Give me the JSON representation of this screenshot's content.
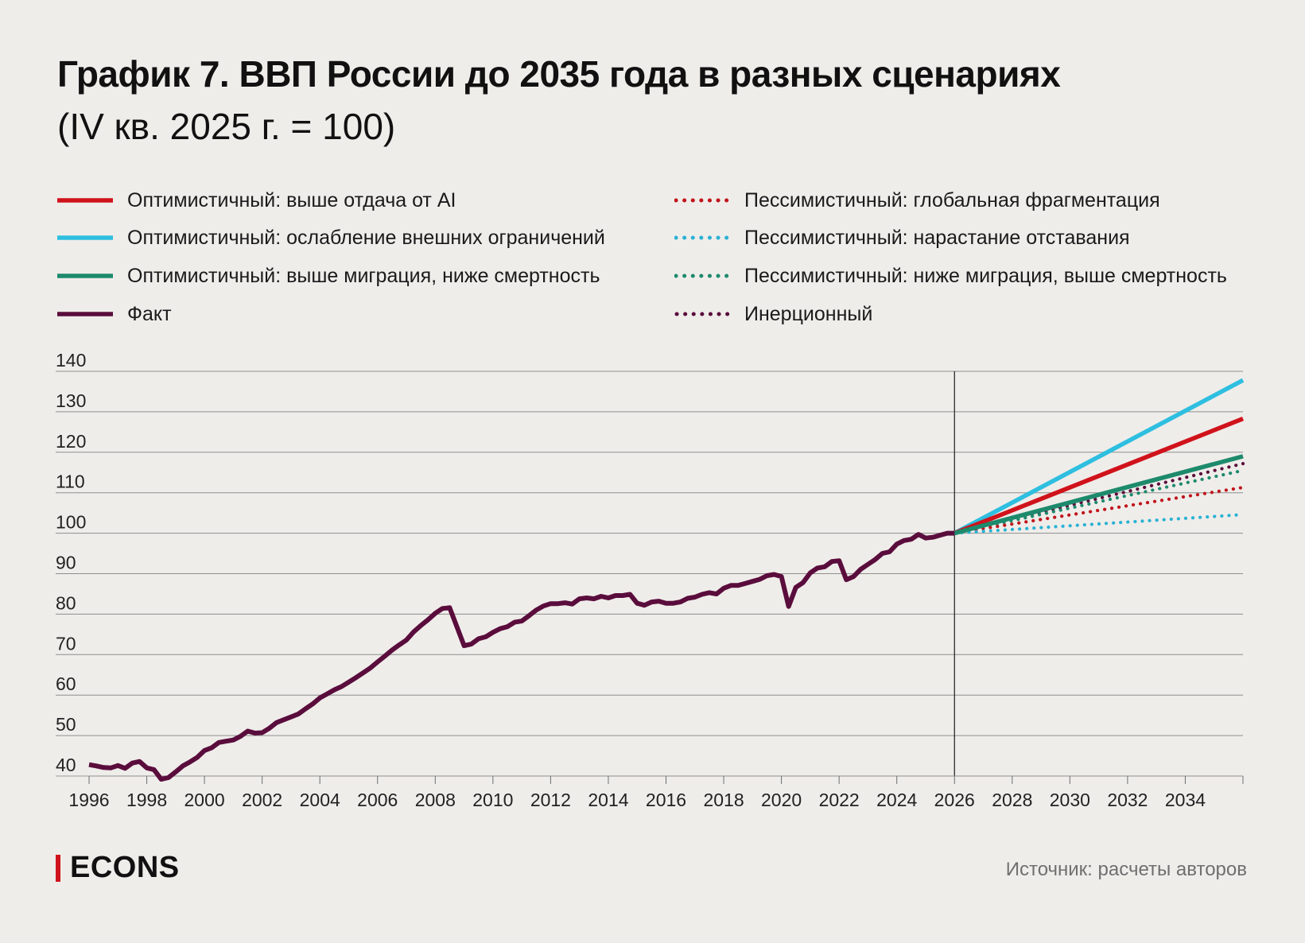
{
  "header": {
    "title": "График 7. ВВП России до 2035 года в разных сценариях",
    "subtitle": "(IV кв. 2025 г. = 100)"
  },
  "legend": [
    {
      "label": "Оптимистичный: выше отдача от AI",
      "color": "#d0121b",
      "style": "solid"
    },
    {
      "label": "Оптимистичный: ослабление внешних ограничений",
      "color": "#2ebfe0",
      "style": "solid"
    },
    {
      "label": "Оптимистичный: выше миграция, ниже смертность",
      "color": "#1d8a6c",
      "style": "solid"
    },
    {
      "label": "Факт",
      "color": "#5a0d3c",
      "style": "solid"
    },
    {
      "label": "Пессимистичный: глобальная фрагментация",
      "color": "#c0141c",
      "style": "dotted"
    },
    {
      "label": "Пессимистичный: нарастание отставания",
      "color": "#2ab2d4",
      "style": "dotted"
    },
    {
      "label": "Пессимистичный: ниже миграция, выше смертность",
      "color": "#1d8a6c",
      "style": "dotted"
    },
    {
      "label": "Инерционный",
      "color": "#5a0d3c",
      "style": "dotted"
    }
  ],
  "footer": {
    "brand": "ECONS",
    "source": "Источник: расчеты авторов"
  },
  "chart_data": {
    "type": "line",
    "title": "График 7. ВВП России до 2035 года в разных сценариях",
    "subtitle": "(IV кв. 2025 г. = 100)",
    "xlabel": "",
    "ylabel": "",
    "xlim": [
      1996,
      2036
    ],
    "ylim": [
      40,
      140
    ],
    "x_ticks": [
      1996,
      1998,
      2000,
      2002,
      2004,
      2006,
      2008,
      2010,
      2012,
      2014,
      2016,
      2018,
      2020,
      2022,
      2024,
      2026,
      2028,
      2030,
      2032,
      2034
    ],
    "y_ticks": [
      40,
      50,
      60,
      70,
      80,
      90,
      100,
      110,
      120,
      130,
      140
    ],
    "grid": "horizontal",
    "reference_line_x": 2026,
    "legend_position": "top",
    "series": [
      {
        "name": "Факт",
        "color": "#5a0d3c",
        "style": "solid",
        "points": [
          [
            1996.0,
            42.8
          ],
          [
            1996.25,
            42.5
          ],
          [
            1996.5,
            42.1
          ],
          [
            1996.75,
            42.0
          ],
          [
            1997.0,
            42.6
          ],
          [
            1997.25,
            41.9
          ],
          [
            1997.5,
            43.2
          ],
          [
            1997.75,
            43.6
          ],
          [
            1998.0,
            42.0
          ],
          [
            1998.25,
            41.6
          ],
          [
            1998.5,
            39.2
          ],
          [
            1998.75,
            39.6
          ],
          [
            1999.0,
            41.0
          ],
          [
            1999.25,
            42.5
          ],
          [
            1999.5,
            43.5
          ],
          [
            1999.75,
            44.6
          ],
          [
            2000.0,
            46.3
          ],
          [
            2000.25,
            47.0
          ],
          [
            2000.5,
            48.3
          ],
          [
            2000.75,
            48.6
          ],
          [
            2001.0,
            48.9
          ],
          [
            2001.25,
            49.8
          ],
          [
            2001.5,
            51.1
          ],
          [
            2001.75,
            50.6
          ],
          [
            2002.0,
            50.7
          ],
          [
            2002.25,
            51.8
          ],
          [
            2002.5,
            53.2
          ],
          [
            2002.75,
            53.9
          ],
          [
            2003.0,
            54.6
          ],
          [
            2003.25,
            55.3
          ],
          [
            2003.5,
            56.6
          ],
          [
            2003.75,
            57.8
          ],
          [
            2004.0,
            59.3
          ],
          [
            2004.25,
            60.3
          ],
          [
            2004.5,
            61.3
          ],
          [
            2004.75,
            62.1
          ],
          [
            2005.0,
            63.2
          ],
          [
            2005.25,
            64.3
          ],
          [
            2005.5,
            65.5
          ],
          [
            2005.75,
            66.7
          ],
          [
            2006.0,
            68.2
          ],
          [
            2006.25,
            69.6
          ],
          [
            2006.5,
            71.1
          ],
          [
            2006.75,
            72.4
          ],
          [
            2007.0,
            73.6
          ],
          [
            2007.25,
            75.6
          ],
          [
            2007.5,
            77.2
          ],
          [
            2007.75,
            78.6
          ],
          [
            2008.0,
            80.2
          ],
          [
            2008.25,
            81.4
          ],
          [
            2008.5,
            81.6
          ],
          [
            2008.75,
            76.9
          ],
          [
            2009.0,
            72.2
          ],
          [
            2009.25,
            72.6
          ],
          [
            2009.5,
            73.9
          ],
          [
            2009.75,
            74.4
          ],
          [
            2010.0,
            75.5
          ],
          [
            2010.25,
            76.4
          ],
          [
            2010.5,
            76.9
          ],
          [
            2010.75,
            78.0
          ],
          [
            2011.0,
            78.3
          ],
          [
            2011.25,
            79.6
          ],
          [
            2011.5,
            81.0
          ],
          [
            2011.75,
            82.0
          ],
          [
            2012.0,
            82.6
          ],
          [
            2012.25,
            82.6
          ],
          [
            2012.5,
            82.8
          ],
          [
            2012.75,
            82.5
          ],
          [
            2013.0,
            83.8
          ],
          [
            2013.25,
            84.0
          ],
          [
            2013.5,
            83.8
          ],
          [
            2013.75,
            84.4
          ],
          [
            2014.0,
            84.0
          ],
          [
            2014.25,
            84.6
          ],
          [
            2014.5,
            84.6
          ],
          [
            2014.75,
            84.9
          ],
          [
            2015.0,
            82.7
          ],
          [
            2015.25,
            82.2
          ],
          [
            2015.5,
            83.0
          ],
          [
            2015.75,
            83.2
          ],
          [
            2016.0,
            82.7
          ],
          [
            2016.25,
            82.7
          ],
          [
            2016.5,
            83.0
          ],
          [
            2016.75,
            83.9
          ],
          [
            2017.0,
            84.2
          ],
          [
            2017.25,
            84.9
          ],
          [
            2017.5,
            85.3
          ],
          [
            2017.75,
            85.0
          ],
          [
            2018.0,
            86.4
          ],
          [
            2018.25,
            87.1
          ],
          [
            2018.5,
            87.1
          ],
          [
            2018.75,
            87.6
          ],
          [
            2019.0,
            88.1
          ],
          [
            2019.25,
            88.6
          ],
          [
            2019.5,
            89.5
          ],
          [
            2019.75,
            89.8
          ],
          [
            2020.0,
            89.3
          ],
          [
            2020.25,
            81.9
          ],
          [
            2020.5,
            86.6
          ],
          [
            2020.75,
            87.8
          ],
          [
            2021.0,
            90.2
          ],
          [
            2021.25,
            91.4
          ],
          [
            2021.5,
            91.7
          ],
          [
            2021.75,
            93.0
          ],
          [
            2022.0,
            93.2
          ],
          [
            2022.25,
            88.5
          ],
          [
            2022.5,
            89.3
          ],
          [
            2022.75,
            91.1
          ],
          [
            2023.0,
            92.3
          ],
          [
            2023.25,
            93.5
          ],
          [
            2023.5,
            95.0
          ],
          [
            2023.75,
            95.4
          ],
          [
            2024.0,
            97.3
          ],
          [
            2024.25,
            98.2
          ],
          [
            2024.5,
            98.5
          ],
          [
            2024.75,
            99.7
          ],
          [
            2025.0,
            98.8
          ],
          [
            2025.25,
            99.0
          ],
          [
            2025.5,
            99.5
          ],
          [
            2025.75,
            100.0
          ],
          [
            2026.0,
            100.0
          ]
        ]
      },
      {
        "name": "Оптимистичный: ослабление внешних ограничений",
        "color": "#2ebfe0",
        "style": "solid",
        "points": [
          [
            2026.0,
            100.0
          ],
          [
            2036.0,
            137.8
          ]
        ]
      },
      {
        "name": "Оптимистичный: выше отдача от AI",
        "color": "#d0121b",
        "style": "solid",
        "points": [
          [
            2026.0,
            100.0
          ],
          [
            2036.0,
            128.3
          ]
        ]
      },
      {
        "name": "Оптимистичный: выше миграция, ниже смертность",
        "color": "#1d8a6c",
        "style": "solid",
        "points": [
          [
            2026.0,
            100.0
          ],
          [
            2036.0,
            119.0
          ]
        ]
      },
      {
        "name": "Инерционный",
        "color": "#5a0d3c",
        "style": "dotted",
        "points": [
          [
            2026.0,
            100.0
          ],
          [
            2036.0,
            117.2
          ]
        ]
      },
      {
        "name": "Пессимистичный: ниже миграция, выше смертность",
        "color": "#1d8a6c",
        "style": "dotted",
        "points": [
          [
            2026.0,
            100.0
          ],
          [
            2036.0,
            115.5
          ]
        ]
      },
      {
        "name": "Пессимистичный: глобальная фрагментация",
        "color": "#c0141c",
        "style": "dotted",
        "points": [
          [
            2026.0,
            100.0
          ],
          [
            2036.0,
            111.3
          ]
        ]
      },
      {
        "name": "Пессимистичный: нарастание отставания",
        "color": "#2ab2d4",
        "style": "dotted",
        "points": [
          [
            2026.0,
            100.0
          ],
          [
            2036.0,
            104.6
          ]
        ]
      }
    ]
  }
}
